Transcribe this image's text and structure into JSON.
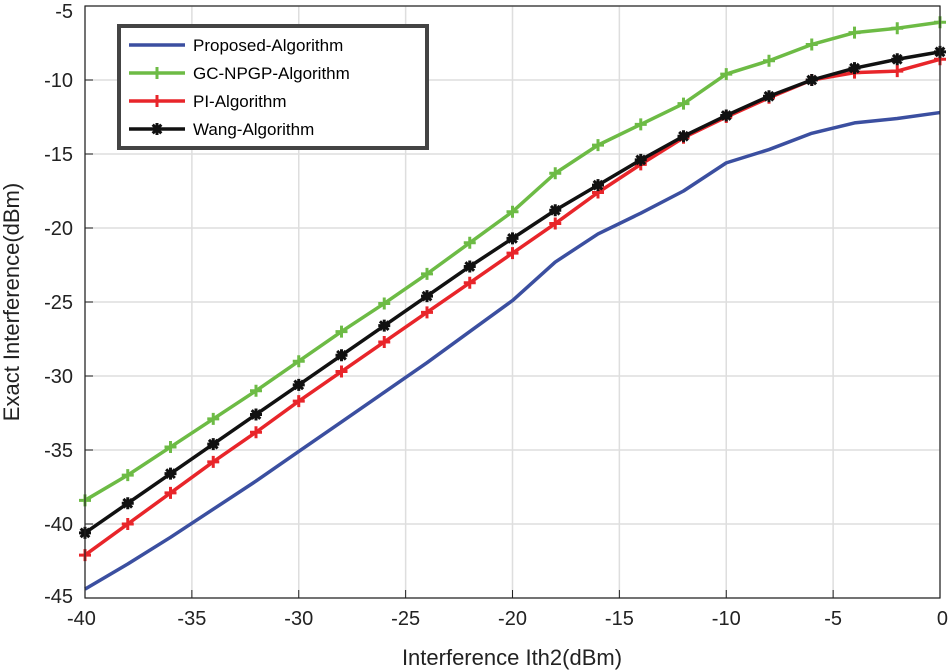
{
  "chart_data": {
    "type": "line",
    "title": "",
    "xlabel": "Interference Ith2(dBm)",
    "ylabel": "Exact Interference(dBm)",
    "xlim": [
      -40,
      0
    ],
    "ylim": [
      -45,
      -5
    ],
    "grid": true,
    "legend_position": "top-left",
    "x_ticks": [
      -40,
      -35,
      -30,
      -25,
      -20,
      -15,
      -10,
      -5,
      0
    ],
    "y_ticks": [
      -5,
      -10,
      -15,
      -20,
      -25,
      -30,
      -35,
      -40,
      -45
    ],
    "x": [
      -40,
      -38,
      -36,
      -34,
      -32,
      -30,
      -28,
      -26,
      -24,
      -22,
      -20,
      -18,
      -16,
      -14,
      -12,
      -10,
      -8,
      -6,
      -4,
      -2,
      0
    ],
    "series": [
      {
        "name": "Proposed-Algorithm",
        "color": "#3b4fa0",
        "marker": "none",
        "values": [
          -44.4,
          -42.7,
          -40.9,
          -39.0,
          -37.1,
          -35.1,
          -33.1,
          -31.1,
          -29.1,
          -27.0,
          -24.9,
          -22.3,
          -20.4,
          -19.0,
          -17.5,
          -15.6,
          -14.7,
          -13.6,
          -12.9,
          -12.6,
          -12.2
        ]
      },
      {
        "name": "GC-NPGP-Algorithm",
        "color": "#6dbb45",
        "marker": "plus",
        "values": [
          -38.4,
          -36.7,
          -34.8,
          -32.9,
          -31.0,
          -29.0,
          -27.0,
          -25.1,
          -23.1,
          -21.0,
          -18.9,
          -16.3,
          -14.4,
          -13.0,
          -11.6,
          -9.6,
          -8.7,
          -7.6,
          -6.8,
          -6.5,
          -6.1
        ]
      },
      {
        "name": "PI-Algorithm",
        "color": "#e8252a",
        "marker": "plus",
        "values": [
          -42.1,
          -40.0,
          -37.9,
          -35.8,
          -33.8,
          -31.7,
          -29.7,
          -27.7,
          -25.7,
          -23.7,
          -21.7,
          -19.7,
          -17.6,
          -15.7,
          -13.9,
          -12.5,
          -11.2,
          -10.0,
          -9.5,
          -9.4,
          -8.6
        ]
      },
      {
        "name": "Wang-Algorithm",
        "color": "#111111",
        "marker": "asterisk",
        "values": [
          -40.6,
          -38.6,
          -36.6,
          -34.6,
          -32.6,
          -30.6,
          -28.6,
          -26.6,
          -24.6,
          -22.6,
          -20.7,
          -18.8,
          -17.1,
          -15.4,
          -13.8,
          -12.4,
          -11.1,
          -10.0,
          -9.2,
          -8.6,
          -8.1
        ]
      }
    ]
  }
}
